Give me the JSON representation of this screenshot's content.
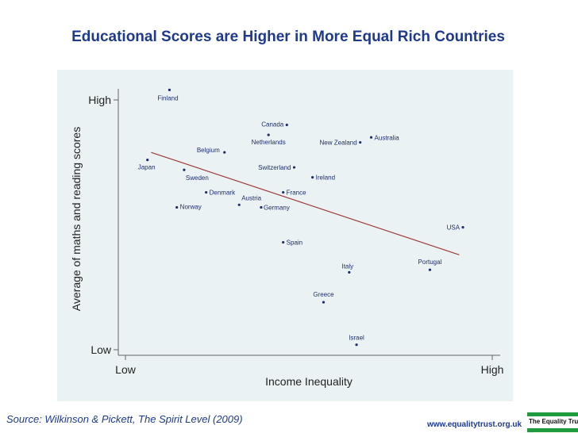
{
  "title": "Educational Scores are Higher in More Equal Rich Countries",
  "source": "Source: Wilkinson & Pickett, The Spirit Level (2009)",
  "footer_url": "www.equalitytrust.org.uk",
  "logo_text": "The Equality Trust",
  "colors": {
    "title": "#1f3a8a",
    "trend": "#a23a3a",
    "panel_bg": "#eaf2f3",
    "logo_green": "#1e9b3c"
  },
  "chart_data": {
    "type": "scatter",
    "title": "Educational Scores are Higher in More Equal Rich Countries",
    "xlabel": "Income Inequality",
    "ylabel": "Average of maths and reading scores",
    "xlim": [
      0,
      100
    ],
    "ylim": [
      0,
      100
    ],
    "x_ticks": [
      {
        "value": 0,
        "label": "Low"
      },
      {
        "value": 100,
        "label": "High"
      }
    ],
    "y_ticks": [
      {
        "value": 0,
        "label": "Low"
      },
      {
        "value": 100,
        "label": "High"
      }
    ],
    "grid": false,
    "points": [
      {
        "label": "Finland",
        "x": 12,
        "y": 104,
        "lx": -2,
        "ly": 13,
        "anchor": "middle"
      },
      {
        "label": "Japan",
        "x": 6,
        "y": 76,
        "lx": -12,
        "ly": 12,
        "anchor": "start"
      },
      {
        "label": "Belgium",
        "x": 27,
        "y": 79,
        "lx": -6,
        "ly": 0,
        "anchor": "end"
      },
      {
        "label": "Sweden",
        "x": 16,
        "y": 72,
        "lx": 2,
        "ly": 13,
        "anchor": "start"
      },
      {
        "label": "Denmark",
        "x": 22,
        "y": 63,
        "lx": 4,
        "ly": 3,
        "anchor": "start"
      },
      {
        "label": "Norway",
        "x": 14,
        "y": 57,
        "lx": 4,
        "ly": 2,
        "anchor": "start"
      },
      {
        "label": "Austria",
        "x": 31,
        "y": 58,
        "lx": 3,
        "ly": -6,
        "anchor": "start"
      },
      {
        "label": "Germany",
        "x": 37,
        "y": 57,
        "lx": 3,
        "ly": 3,
        "anchor": "start"
      },
      {
        "label": "Canada",
        "x": 44,
        "y": 90,
        "lx": -4,
        "ly": 2,
        "anchor": "end"
      },
      {
        "label": "Netherlands",
        "x": 39,
        "y": 86,
        "lx": 0,
        "ly": 12,
        "anchor": "middle"
      },
      {
        "label": "Switzerland",
        "x": 46,
        "y": 73,
        "lx": -4,
        "ly": 3,
        "anchor": "end"
      },
      {
        "label": "France",
        "x": 43,
        "y": 63,
        "lx": 4,
        "ly": 3,
        "anchor": "start"
      },
      {
        "label": "Ireland",
        "x": 51,
        "y": 69,
        "lx": 4,
        "ly": 3,
        "anchor": "start"
      },
      {
        "label": "New Zealand",
        "x": 64,
        "y": 83,
        "lx": -4,
        "ly": 3,
        "anchor": "end"
      },
      {
        "label": "Australia",
        "x": 67,
        "y": 85,
        "lx": 4,
        "ly": 3,
        "anchor": "start"
      },
      {
        "label": "Spain",
        "x": 43,
        "y": 43,
        "lx": 4,
        "ly": 3,
        "anchor": "start"
      },
      {
        "label": "Italy",
        "x": 61,
        "y": 31,
        "lx": -2,
        "ly": -5,
        "anchor": "middle"
      },
      {
        "label": "Portugal",
        "x": 83,
        "y": 32,
        "lx": 0,
        "ly": -7,
        "anchor": "middle"
      },
      {
        "label": "Greece",
        "x": 54,
        "y": 19,
        "lx": 0,
        "ly": -7,
        "anchor": "middle"
      },
      {
        "label": "Israel",
        "x": 63,
        "y": 2,
        "lx": 0,
        "ly": -6,
        "anchor": "middle"
      },
      {
        "label": "USA",
        "x": 92,
        "y": 49,
        "lx": -4,
        "ly": 3,
        "anchor": "end"
      }
    ],
    "trend_line": {
      "x": [
        7,
        91
      ],
      "y": [
        79,
        38
      ]
    }
  }
}
